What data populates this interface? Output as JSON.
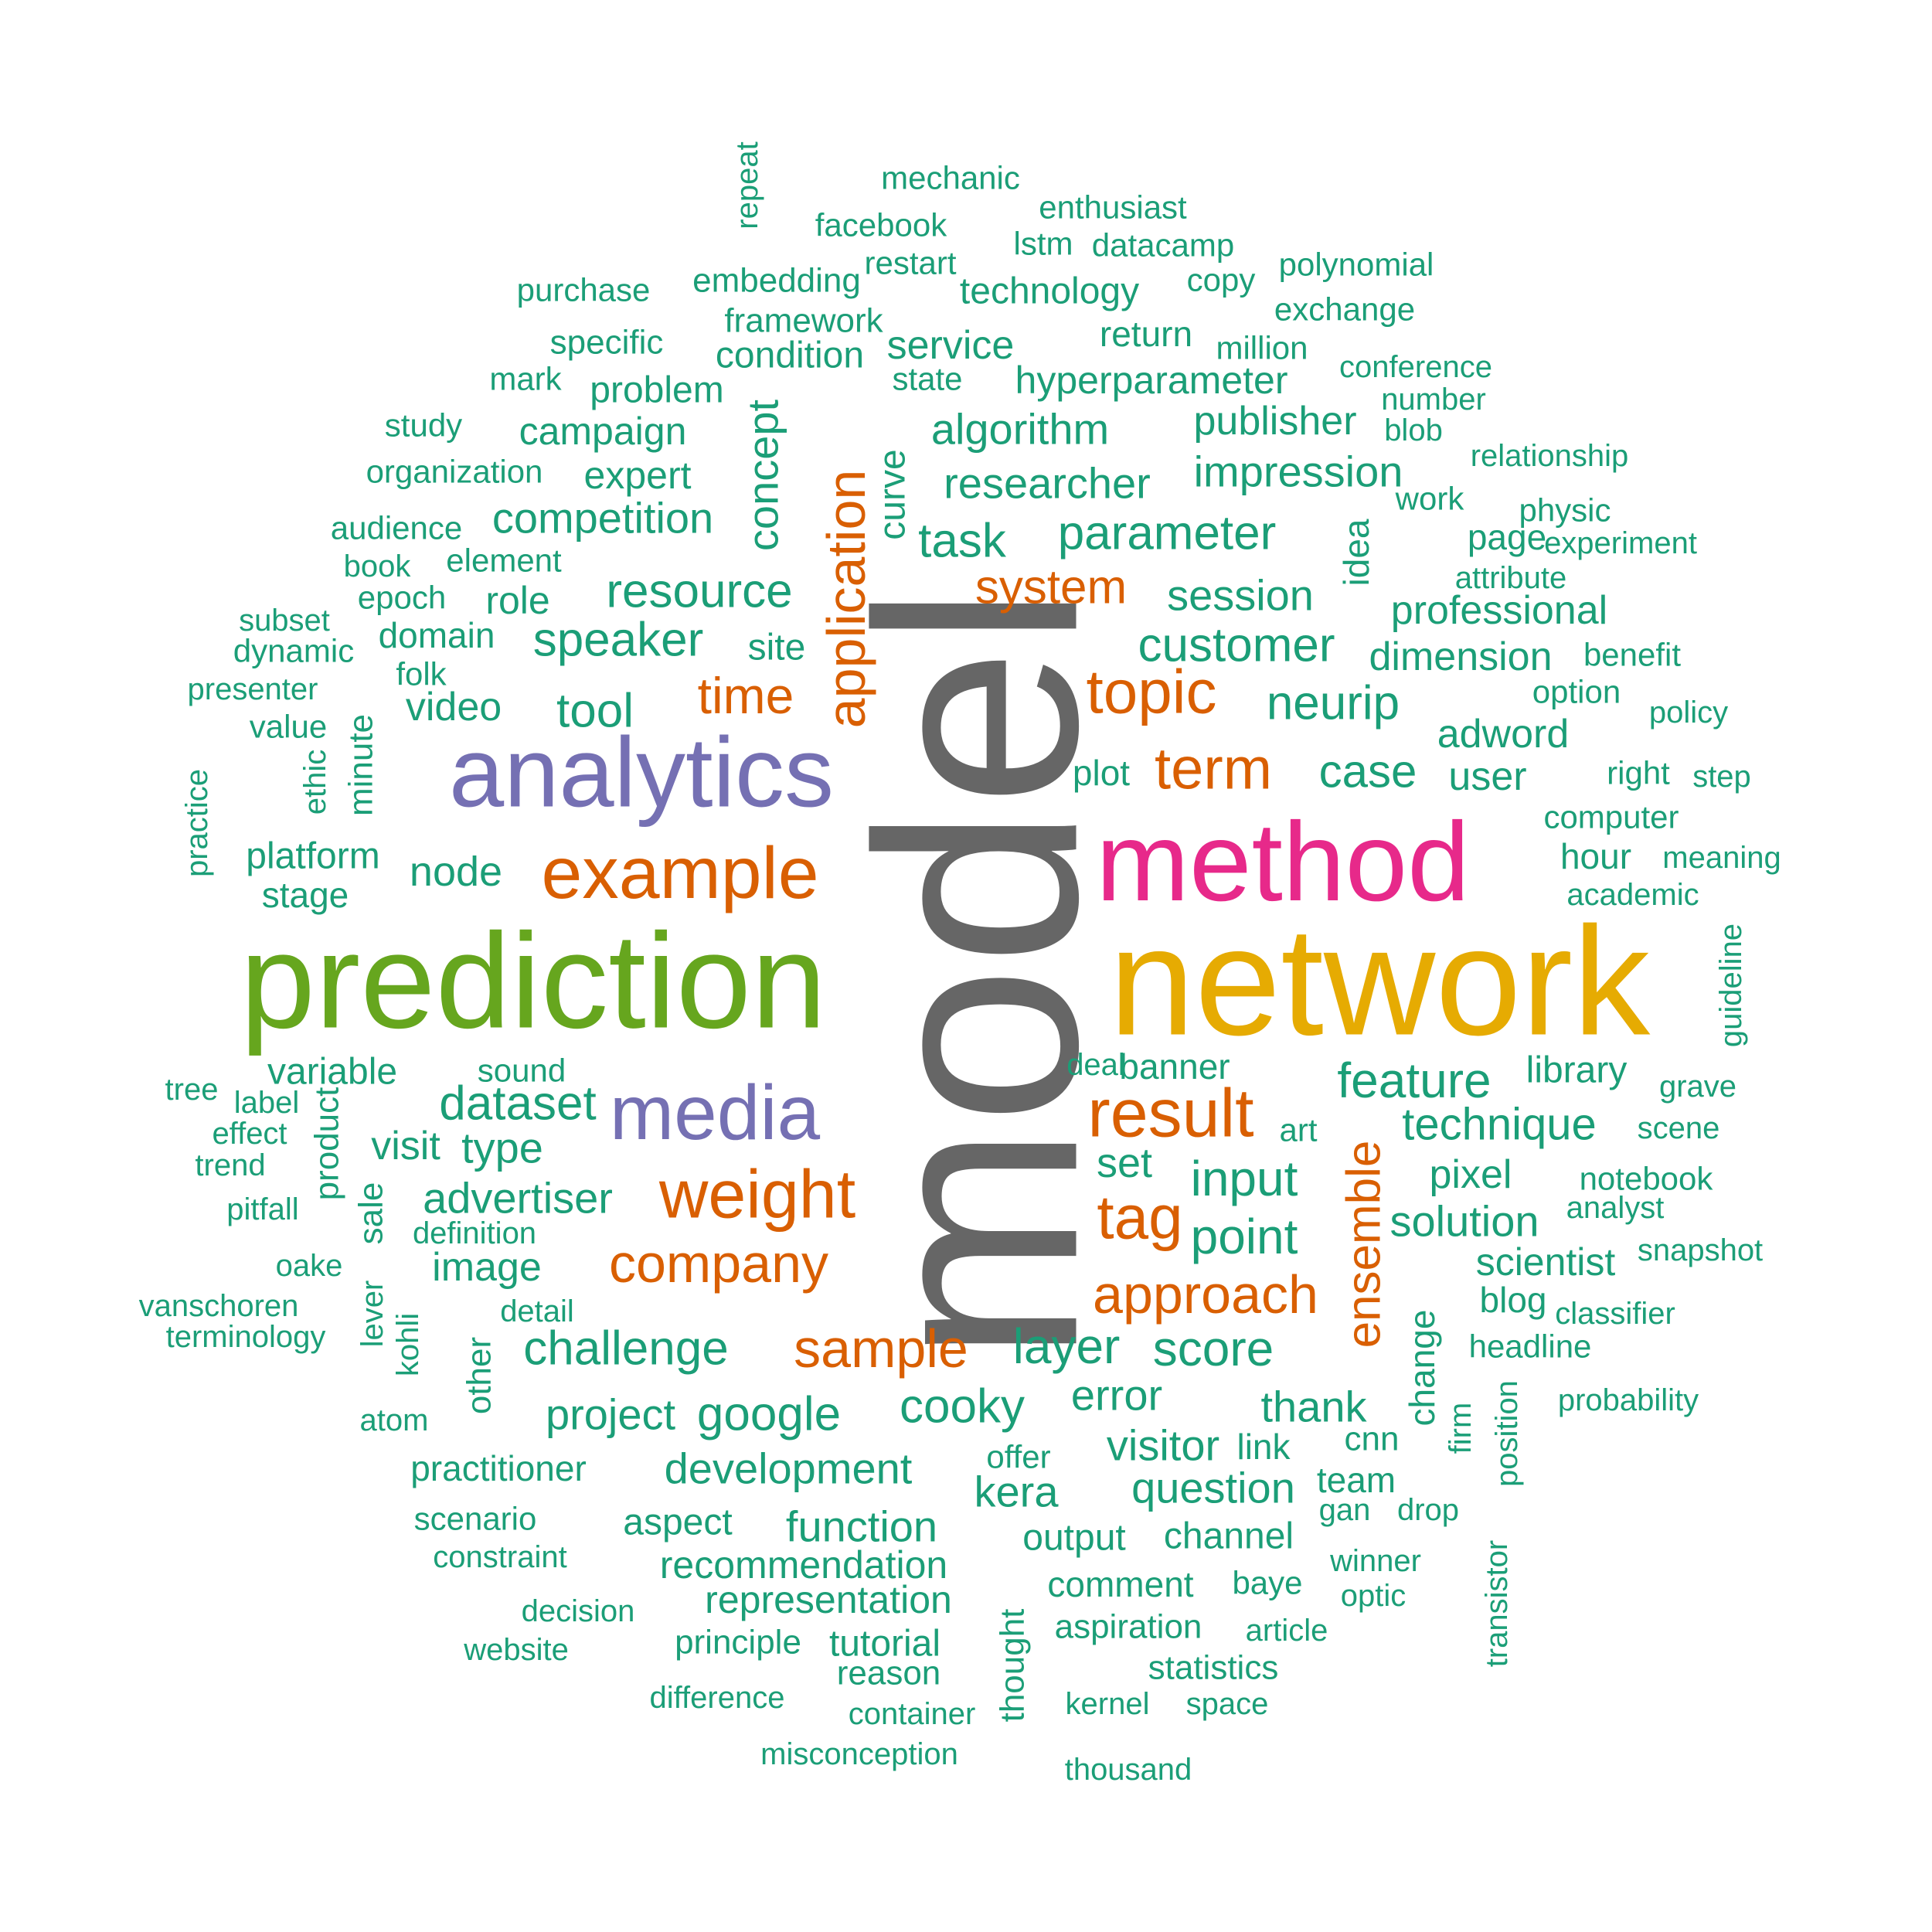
{
  "colors": {
    "teal": "#1b9e77",
    "orange": "#d95f02",
    "purple": "#7570b3",
    "pink": "#e7298a",
    "green": "#66a61e",
    "gold": "#e6ab02",
    "gray": "#666666"
  },
  "words": [
    {
      "text": "model",
      "color": "gray",
      "size": 370,
      "rot": -90
    },
    {
      "text": "network",
      "color": "gold",
      "size": 200
    },
    {
      "text": "prediction",
      "color": "green",
      "size": 175
    },
    {
      "text": "method",
      "color": "pink",
      "size": 145
    },
    {
      "text": "analytics",
      "color": "purple",
      "size": 128
    },
    {
      "text": "media",
      "color": "purple",
      "size": 100
    },
    {
      "text": "example",
      "color": "orange",
      "size": 95
    },
    {
      "text": "result",
      "color": "orange",
      "size": 88
    },
    {
      "text": "weight",
      "color": "orange",
      "size": 88
    },
    {
      "text": "topic",
      "color": "orange",
      "size": 80
    },
    {
      "text": "tag",
      "color": "orange",
      "size": 80
    },
    {
      "text": "term",
      "color": "orange",
      "size": 76
    },
    {
      "text": "application",
      "color": "orange",
      "size": 70,
      "rot": -90
    },
    {
      "text": "approach",
      "color": "orange",
      "size": 70
    },
    {
      "text": "sample",
      "color": "orange",
      "size": 70
    },
    {
      "text": "company",
      "color": "orange",
      "size": 70
    },
    {
      "text": "ensemble",
      "color": "orange",
      "size": 62,
      "rot": -90
    },
    {
      "text": "time",
      "color": "orange",
      "size": 66
    },
    {
      "text": "system",
      "color": "orange",
      "size": 62
    },
    {
      "text": "feature",
      "color": "teal",
      "size": 64
    },
    {
      "text": "dataset",
      "color": "teal",
      "size": 62
    },
    {
      "text": "layer",
      "color": "teal",
      "size": 64
    },
    {
      "text": "score",
      "color": "teal",
      "size": 64
    },
    {
      "text": "challenge",
      "color": "teal",
      "size": 62
    },
    {
      "text": "google",
      "color": "teal",
      "size": 62
    },
    {
      "text": "input",
      "color": "teal",
      "size": 64
    },
    {
      "text": "point",
      "color": "teal",
      "size": 64
    },
    {
      "text": "customer",
      "color": "teal",
      "size": 62
    },
    {
      "text": "parameter",
      "color": "teal",
      "size": 62
    },
    {
      "text": "task",
      "color": "teal",
      "size": 62
    },
    {
      "text": "resource",
      "color": "teal",
      "size": 62
    },
    {
      "text": "speaker",
      "color": "teal",
      "size": 62
    },
    {
      "text": "tool",
      "color": "teal",
      "size": 62
    },
    {
      "text": "neurip",
      "color": "teal",
      "size": 62
    },
    {
      "text": "case",
      "color": "teal",
      "size": 60
    },
    {
      "text": "cooky",
      "color": "teal",
      "size": 62
    },
    {
      "text": "technique",
      "color": "teal",
      "size": 58
    },
    {
      "text": "solution",
      "color": "teal",
      "size": 56
    },
    {
      "text": "researcher",
      "color": "teal",
      "size": 56
    },
    {
      "text": "impression",
      "color": "teal",
      "size": 56
    },
    {
      "text": "competition",
      "color": "teal",
      "size": 56
    },
    {
      "text": "advertiser",
      "color": "teal",
      "size": 56
    },
    {
      "text": "question",
      "color": "teal",
      "size": 56
    },
    {
      "text": "development",
      "color": "teal",
      "size": 56
    },
    {
      "text": "function",
      "color": "teal",
      "size": 56
    },
    {
      "text": "algorithm",
      "color": "teal",
      "size": 56
    },
    {
      "text": "concept",
      "color": "teal",
      "size": 56,
      "rot": -90
    },
    {
      "text": "session",
      "color": "teal",
      "size": 56
    },
    {
      "text": "video",
      "color": "teal",
      "size": 52
    },
    {
      "text": "node",
      "color": "teal",
      "size": 54
    },
    {
      "text": "type",
      "color": "teal",
      "size": 56
    },
    {
      "text": "visit",
      "color": "teal",
      "size": 52
    },
    {
      "text": "image",
      "color": "teal",
      "size": 52
    },
    {
      "text": "project",
      "color": "teal",
      "size": 56
    },
    {
      "text": "error",
      "color": "teal",
      "size": 56
    },
    {
      "text": "thank",
      "color": "teal",
      "size": 56
    },
    {
      "text": "visitor",
      "color": "teal",
      "size": 56
    },
    {
      "text": "kera",
      "color": "teal",
      "size": 56
    },
    {
      "text": "set",
      "color": "teal",
      "size": 54
    },
    {
      "text": "professional",
      "color": "teal",
      "size": 52
    },
    {
      "text": "dimension",
      "color": "teal",
      "size": 52
    },
    {
      "text": "adword",
      "color": "teal",
      "size": 52
    },
    {
      "text": "user",
      "color": "teal",
      "size": 52
    },
    {
      "text": "pixel",
      "color": "teal",
      "size": 52
    },
    {
      "text": "scientist",
      "color": "teal",
      "size": 50
    },
    {
      "text": "publisher",
      "color": "teal",
      "size": 52
    },
    {
      "text": "hyperparameter",
      "color": "teal",
      "size": 50
    },
    {
      "text": "service",
      "color": "teal",
      "size": 52
    },
    {
      "text": "campaign",
      "color": "teal",
      "size": 50
    },
    {
      "text": "expert",
      "color": "teal",
      "size": 50
    },
    {
      "text": "problem",
      "color": "teal",
      "size": 48
    },
    {
      "text": "condition",
      "color": "teal",
      "size": 48
    },
    {
      "text": "technology",
      "color": "teal",
      "size": 48
    },
    {
      "text": "recommendation",
      "color": "teal",
      "size": 50
    },
    {
      "text": "representation",
      "color": "teal",
      "size": 50
    },
    {
      "text": "tutorial",
      "color": "teal",
      "size": 48
    },
    {
      "text": "output",
      "color": "teal",
      "size": 48
    },
    {
      "text": "channel",
      "color": "teal",
      "size": 48
    },
    {
      "text": "aspect",
      "color": "teal",
      "size": 48
    },
    {
      "text": "team",
      "color": "teal",
      "size": 46
    },
    {
      "text": "platform",
      "color": "teal",
      "size": 48
    },
    {
      "text": "stage",
      "color": "teal",
      "size": 46
    },
    {
      "text": "variable",
      "color": "teal",
      "size": 48
    },
    {
      "text": "site",
      "color": "teal",
      "size": 48
    },
    {
      "text": "role",
      "color": "teal",
      "size": 50
    },
    {
      "text": "library",
      "color": "teal",
      "size": 48
    },
    {
      "text": "practitioner",
      "color": "teal",
      "size": 46
    },
    {
      "text": "comment",
      "color": "teal",
      "size": 46
    },
    {
      "text": "banner",
      "color": "teal",
      "size": 46
    },
    {
      "text": "curve",
      "color": "teal",
      "size": 48,
      "rot": -90
    },
    {
      "text": "idea",
      "color": "teal",
      "size": 46,
      "rot": -90
    },
    {
      "text": "change",
      "color": "teal",
      "size": 46,
      "rot": -90
    },
    {
      "text": "blog",
      "color": "teal",
      "size": 46
    },
    {
      "text": "page",
      "color": "teal",
      "size": 46
    },
    {
      "text": "hour",
      "color": "teal",
      "size": 46
    },
    {
      "text": "plot",
      "color": "teal",
      "size": 46
    },
    {
      "text": "domain",
      "color": "teal",
      "size": 46
    },
    {
      "text": "link",
      "color": "teal",
      "size": 46
    },
    {
      "text": "cnn",
      "color": "teal",
      "size": 44
    },
    {
      "text": "statistics",
      "color": "teal",
      "size": 44
    },
    {
      "text": "aspiration",
      "color": "teal",
      "size": 44
    },
    {
      "text": "reason",
      "color": "teal",
      "size": 44
    },
    {
      "text": "principle",
      "color": "teal",
      "size": 44
    },
    {
      "text": "minute",
      "color": "teal",
      "size": 44,
      "rot": -90
    },
    {
      "text": "product",
      "color": "teal",
      "size": 44,
      "rot": -90
    },
    {
      "text": "sale",
      "color": "teal",
      "size": 44,
      "rot": -90
    },
    {
      "text": "other",
      "color": "teal",
      "size": 44,
      "rot": -90
    },
    {
      "text": "lever",
      "color": "teal",
      "size": 40,
      "rot": -90
    },
    {
      "text": "kohli",
      "color": "teal",
      "size": 40,
      "rot": -90
    },
    {
      "text": "thought",
      "color": "teal",
      "size": 44,
      "rot": -90
    },
    {
      "text": "firm",
      "color": "teal",
      "size": 40,
      "rot": -90
    },
    {
      "text": "position",
      "color": "teal",
      "size": 40,
      "rot": -90
    },
    {
      "text": "transistor",
      "color": "teal",
      "size": 40,
      "rot": -90
    },
    {
      "text": "guideline",
      "color": "teal",
      "size": 40,
      "rot": -90
    },
    {
      "text": "ethic",
      "color": "teal",
      "size": 40,
      "rot": -90
    },
    {
      "text": "practice",
      "color": "teal",
      "size": 40,
      "rot": -90
    },
    {
      "text": "repeat",
      "color": "teal",
      "size": 40,
      "rot": -90
    },
    {
      "text": "mechanic",
      "color": "teal",
      "size": 42
    },
    {
      "text": "enthusiast",
      "color": "teal",
      "size": 42
    },
    {
      "text": "facebook",
      "color": "teal",
      "size": 42
    },
    {
      "text": "restart",
      "color": "teal",
      "size": 42
    },
    {
      "text": "lstm",
      "color": "teal",
      "size": 42
    },
    {
      "text": "datacamp",
      "color": "teal",
      "size": 42
    },
    {
      "text": "copy",
      "color": "teal",
      "size": 42
    },
    {
      "text": "polynomial",
      "color": "teal",
      "size": 42
    },
    {
      "text": "purchase",
      "color": "teal",
      "size": 42
    },
    {
      "text": "embedding",
      "color": "teal",
      "size": 44
    },
    {
      "text": "exchange",
      "color": "teal",
      "size": 42
    },
    {
      "text": "framework",
      "color": "teal",
      "size": 44
    },
    {
      "text": "return",
      "color": "teal",
      "size": 46
    },
    {
      "text": "million",
      "color": "teal",
      "size": 42
    },
    {
      "text": "specific",
      "color": "teal",
      "size": 44
    },
    {
      "text": "state",
      "color": "teal",
      "size": 42
    },
    {
      "text": "conference",
      "color": "teal",
      "size": 40
    },
    {
      "text": "mark",
      "color": "teal",
      "size": 42
    },
    {
      "text": "number",
      "color": "teal",
      "size": 40
    },
    {
      "text": "study",
      "color": "teal",
      "size": 42
    },
    {
      "text": "blob",
      "color": "teal",
      "size": 40
    },
    {
      "text": "relationship",
      "color": "teal",
      "size": 40
    },
    {
      "text": "organization",
      "color": "teal",
      "size": 42
    },
    {
      "text": "work",
      "color": "teal",
      "size": 42
    },
    {
      "text": "physic",
      "color": "teal",
      "size": 42
    },
    {
      "text": "audience",
      "color": "teal",
      "size": 42
    },
    {
      "text": "experiment",
      "color": "teal",
      "size": 40
    },
    {
      "text": "book",
      "color": "teal",
      "size": 40
    },
    {
      "text": "element",
      "color": "teal",
      "size": 42
    },
    {
      "text": "attribute",
      "color": "teal",
      "size": 40
    },
    {
      "text": "epoch",
      "color": "teal",
      "size": 42
    },
    {
      "text": "subset",
      "color": "teal",
      "size": 40
    },
    {
      "text": "dynamic",
      "color": "teal",
      "size": 42
    },
    {
      "text": "benefit",
      "color": "teal",
      "size": 42
    },
    {
      "text": "presenter",
      "color": "teal",
      "size": 40
    },
    {
      "text": "folk",
      "color": "teal",
      "size": 42
    },
    {
      "text": "option",
      "color": "teal",
      "size": 42
    },
    {
      "text": "value",
      "color": "teal",
      "size": 42
    },
    {
      "text": "policy",
      "color": "teal",
      "size": 40
    },
    {
      "text": "right",
      "color": "teal",
      "size": 42
    },
    {
      "text": "step",
      "color": "teal",
      "size": 40
    },
    {
      "text": "computer",
      "color": "teal",
      "size": 42
    },
    {
      "text": "meaning",
      "color": "teal",
      "size": 40
    },
    {
      "text": "academic",
      "color": "teal",
      "size": 40
    },
    {
      "text": "tree",
      "color": "teal",
      "size": 40
    },
    {
      "text": "label",
      "color": "teal",
      "size": 40
    },
    {
      "text": "sound",
      "color": "teal",
      "size": 42
    },
    {
      "text": "deal",
      "color": "teal",
      "size": 40
    },
    {
      "text": "grave",
      "color": "teal",
      "size": 40
    },
    {
      "text": "effect",
      "color": "teal",
      "size": 40
    },
    {
      "text": "art",
      "color": "teal",
      "size": 42
    },
    {
      "text": "scene",
      "color": "teal",
      "size": 40
    },
    {
      "text": "trend",
      "color": "teal",
      "size": 40
    },
    {
      "text": "notebook",
      "color": "teal",
      "size": 42
    },
    {
      "text": "pitfall",
      "color": "teal",
      "size": 40
    },
    {
      "text": "analyst",
      "color": "teal",
      "size": 40
    },
    {
      "text": "definition",
      "color": "teal",
      "size": 40
    },
    {
      "text": "snapshot",
      "color": "teal",
      "size": 40
    },
    {
      "text": "oake",
      "color": "teal",
      "size": 40
    },
    {
      "text": "vanschoren",
      "color": "teal",
      "size": 40
    },
    {
      "text": "detail",
      "color": "teal",
      "size": 40
    },
    {
      "text": "classifier",
      "color": "teal",
      "size": 40
    },
    {
      "text": "terminology",
      "color": "teal",
      "size": 40
    },
    {
      "text": "headline",
      "color": "teal",
      "size": 42
    },
    {
      "text": "atom",
      "color": "teal",
      "size": 40
    },
    {
      "text": "probability",
      "color": "teal",
      "size": 40
    },
    {
      "text": "offer",
      "color": "teal",
      "size": 42
    },
    {
      "text": "gan",
      "color": "teal",
      "size": 40
    },
    {
      "text": "drop",
      "color": "teal",
      "size": 40
    },
    {
      "text": "scenario",
      "color": "teal",
      "size": 42
    },
    {
      "text": "constraint",
      "color": "teal",
      "size": 40
    },
    {
      "text": "winner",
      "color": "teal",
      "size": 40
    },
    {
      "text": "baye",
      "color": "teal",
      "size": 42
    },
    {
      "text": "optic",
      "color": "teal",
      "size": 40
    },
    {
      "text": "decision",
      "color": "teal",
      "size": 40
    },
    {
      "text": "article",
      "color": "teal",
      "size": 40
    },
    {
      "text": "website",
      "color": "teal",
      "size": 40
    },
    {
      "text": "difference",
      "color": "teal",
      "size": 40
    },
    {
      "text": "container",
      "color": "teal",
      "size": 40
    },
    {
      "text": "kernel",
      "color": "teal",
      "size": 40
    },
    {
      "text": "space",
      "color": "teal",
      "size": 40
    },
    {
      "text": "misconception",
      "color": "teal",
      "size": 40
    },
    {
      "text": "thousand",
      "color": "teal",
      "size": 40
    }
  ]
}
